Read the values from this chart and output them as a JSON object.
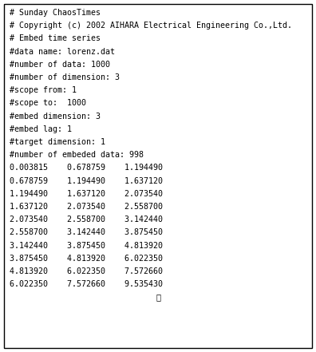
{
  "lines": [
    "# Sunday ChaosTimes",
    "# Copyright (c) 2002 AIHARA Electrical Engineering Co.,Ltd.",
    "# Embed time series",
    "#data name: lorenz.dat",
    "#number of data: 1000",
    "#number of dimension: 3",
    "#scope from: 1",
    "#scope to:  1000",
    "#embed dimension: 3",
    "#embed lag: 1",
    "#target dimension: 1",
    "#number of embeded data: 998",
    "0.003815    0.678759    1.194490",
    "0.678759    1.194490    1.637120",
    "1.194490    1.637120    2.073540",
    "1.637120    2.073540    2.558700",
    "2.073540    2.558700    3.142440",
    "2.558700    3.142440    3.875450",
    "3.142440    3.875450    4.813920",
    "3.875450    4.813920    6.022350",
    "4.813920    6.022350    7.572660",
    "6.022350    7.572660    9.535430",
    "⋮"
  ],
  "font_size": 7.2,
  "bg_color": "#ffffff",
  "border_color": "#000000",
  "text_color": "#000000"
}
